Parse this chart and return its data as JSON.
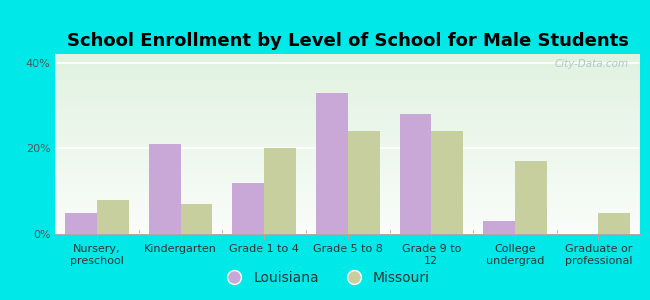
{
  "title": "School Enrollment by Level of School for Male Students",
  "categories": [
    "Nursery,\npreschool",
    "Kindergarten",
    "Grade 1 to 4",
    "Grade 5 to 8",
    "Grade 9 to\n12",
    "College\nundergrad",
    "Graduate or\nprofessional"
  ],
  "louisiana": [
    5.0,
    21.0,
    12.0,
    33.0,
    28.0,
    3.0,
    0.0
  ],
  "missouri": [
    8.0,
    7.0,
    20.0,
    24.0,
    24.0,
    17.0,
    5.0
  ],
  "louisiana_color": "#c9a8d8",
  "missouri_color": "#c8cf9e",
  "background_outer": "#00e8e8",
  "background_inner": "#e8f2e4",
  "yticks": [
    0,
    20,
    40
  ],
  "ylim": [
    0,
    42
  ],
  "legend_louisiana": "Louisiana",
  "legend_missouri": "Missouri",
  "title_fontsize": 13,
  "tick_fontsize": 8,
  "legend_fontsize": 10,
  "bar_width": 0.38,
  "watermark": "City-Data.com"
}
